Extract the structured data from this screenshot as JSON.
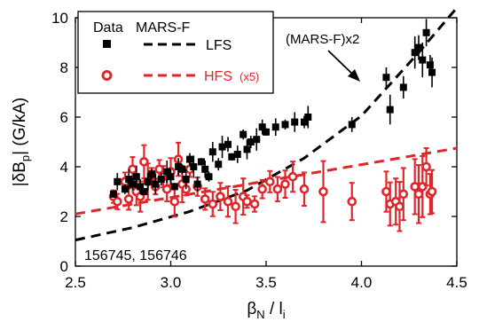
{
  "chart_data": {
    "type": "scatter",
    "xlabel": "βN / li",
    "ylabel": "|δBp| (G/kA)",
    "xlim": [
      2.5,
      4.5
    ],
    "ylim": [
      0,
      10
    ],
    "xticks": [
      "2.5",
      "3.0",
      "3.5",
      "4.0",
      "4.5"
    ],
    "yticks": [
      "0",
      "2",
      "4",
      "6",
      "8",
      "10"
    ],
    "legend": {
      "position": "top-left",
      "header_data": "Data",
      "header_model": "MARS-F",
      "lfs_label": "LFS",
      "hfs_label": "HFS",
      "hfs_suffix": "(x5)"
    },
    "annotation": "(MARS-F)x2",
    "shot_label": "156745, 156746",
    "colors": {
      "lfs": "#000000",
      "hfs": "#e0262b"
    },
    "series": [
      {
        "name": "LFS",
        "marker": "square",
        "points": [
          [
            2.7,
            2.9
          ],
          [
            2.72,
            3.4
          ],
          [
            2.76,
            3.1
          ],
          [
            2.78,
            3.5
          ],
          [
            2.8,
            3.3
          ],
          [
            2.82,
            3.6
          ],
          [
            2.84,
            3.2
          ],
          [
            2.86,
            3.0
          ],
          [
            2.88,
            3.4
          ],
          [
            2.9,
            3.7
          ],
          [
            2.92,
            3.3
          ],
          [
            2.95,
            3.5
          ],
          [
            2.98,
            3.8
          ],
          [
            3.0,
            3.6
          ],
          [
            3.02,
            3.2
          ],
          [
            3.04,
            4.0
          ],
          [
            3.06,
            3.9
          ],
          [
            3.08,
            3.5
          ],
          [
            3.1,
            4.3
          ],
          [
            3.12,
            4.0
          ],
          [
            3.14,
            3.3
          ],
          [
            3.16,
            4.2
          ],
          [
            3.18,
            3.9
          ],
          [
            3.2,
            3.6
          ],
          [
            3.22,
            4.6
          ],
          [
            3.25,
            4.1
          ],
          [
            3.27,
            4.8
          ],
          [
            3.3,
            4.9
          ],
          [
            3.32,
            4.4
          ],
          [
            3.35,
            4.5
          ],
          [
            3.38,
            5.3
          ],
          [
            3.4,
            4.7
          ],
          [
            3.42,
            5.0
          ],
          [
            3.45,
            5.1
          ],
          [
            3.48,
            5.6
          ],
          [
            3.5,
            5.4
          ],
          [
            3.55,
            5.6
          ],
          [
            3.6,
            5.7
          ],
          [
            3.65,
            5.8
          ],
          [
            3.7,
            5.8
          ],
          [
            3.72,
            6.0
          ],
          [
            3.95,
            5.7
          ],
          [
            4.13,
            7.6
          ],
          [
            4.15,
            6.3
          ],
          [
            4.22,
            7.2
          ],
          [
            4.28,
            8.6
          ],
          [
            4.3,
            8.8
          ],
          [
            4.32,
            8.3
          ],
          [
            4.34,
            9.4
          ],
          [
            4.36,
            8.1
          ],
          [
            4.37,
            7.8
          ]
        ]
      },
      {
        "name": "HFS",
        "marker": "circle",
        "points": [
          [
            2.7,
            2.8
          ],
          [
            2.72,
            2.6
          ],
          [
            2.76,
            3.4
          ],
          [
            2.78,
            2.7
          ],
          [
            2.8,
            3.9
          ],
          [
            2.82,
            3.0
          ],
          [
            2.84,
            2.8
          ],
          [
            2.86,
            4.2
          ],
          [
            2.88,
            3.4
          ],
          [
            2.9,
            3.7
          ],
          [
            2.92,
            3.2
          ],
          [
            2.94,
            3.9
          ],
          [
            2.96,
            3.6
          ],
          [
            2.98,
            3.1
          ],
          [
            3.0,
            3.8
          ],
          [
            3.02,
            2.6
          ],
          [
            3.04,
            4.3
          ],
          [
            3.06,
            3.3
          ],
          [
            3.08,
            3.1
          ],
          [
            3.1,
            3.9
          ],
          [
            3.14,
            3.2
          ],
          [
            3.18,
            2.7
          ],
          [
            3.22,
            2.5
          ],
          [
            3.26,
            2.8
          ],
          [
            3.3,
            2.6
          ],
          [
            3.34,
            2.4
          ],
          [
            3.38,
            2.8
          ],
          [
            3.4,
            2.6
          ],
          [
            3.44,
            2.5
          ],
          [
            3.48,
            3.1
          ],
          [
            3.52,
            3.4
          ],
          [
            3.56,
            3.1
          ],
          [
            3.6,
            3.3
          ],
          [
            3.64,
            3.6
          ],
          [
            3.7,
            3.1
          ],
          [
            3.8,
            3.0
          ],
          [
            3.95,
            2.6
          ],
          [
            4.13,
            3.0
          ],
          [
            4.15,
            2.5
          ],
          [
            4.18,
            2.6
          ],
          [
            4.2,
            2.4
          ],
          [
            4.22,
            2.9
          ],
          [
            4.28,
            3.2
          ],
          [
            4.3,
            2.9
          ],
          [
            4.32,
            3.2
          ],
          [
            4.34,
            4.0
          ],
          [
            4.36,
            2.9
          ],
          [
            4.37,
            3.0
          ]
        ]
      }
    ],
    "model_curves": [
      {
        "name": "LFS",
        "style": "dashed",
        "points": [
          [
            2.5,
            1.05
          ],
          [
            2.8,
            1.55
          ],
          [
            3.1,
            2.2
          ],
          [
            3.4,
            3.05
          ],
          [
            3.7,
            4.35
          ],
          [
            4.0,
            6.05
          ],
          [
            4.3,
            8.6
          ],
          [
            4.5,
            10.4
          ]
        ]
      },
      {
        "name": "HFS",
        "style": "dashed",
        "points": [
          [
            2.5,
            2.1
          ],
          [
            4.5,
            4.75
          ]
        ]
      }
    ]
  }
}
